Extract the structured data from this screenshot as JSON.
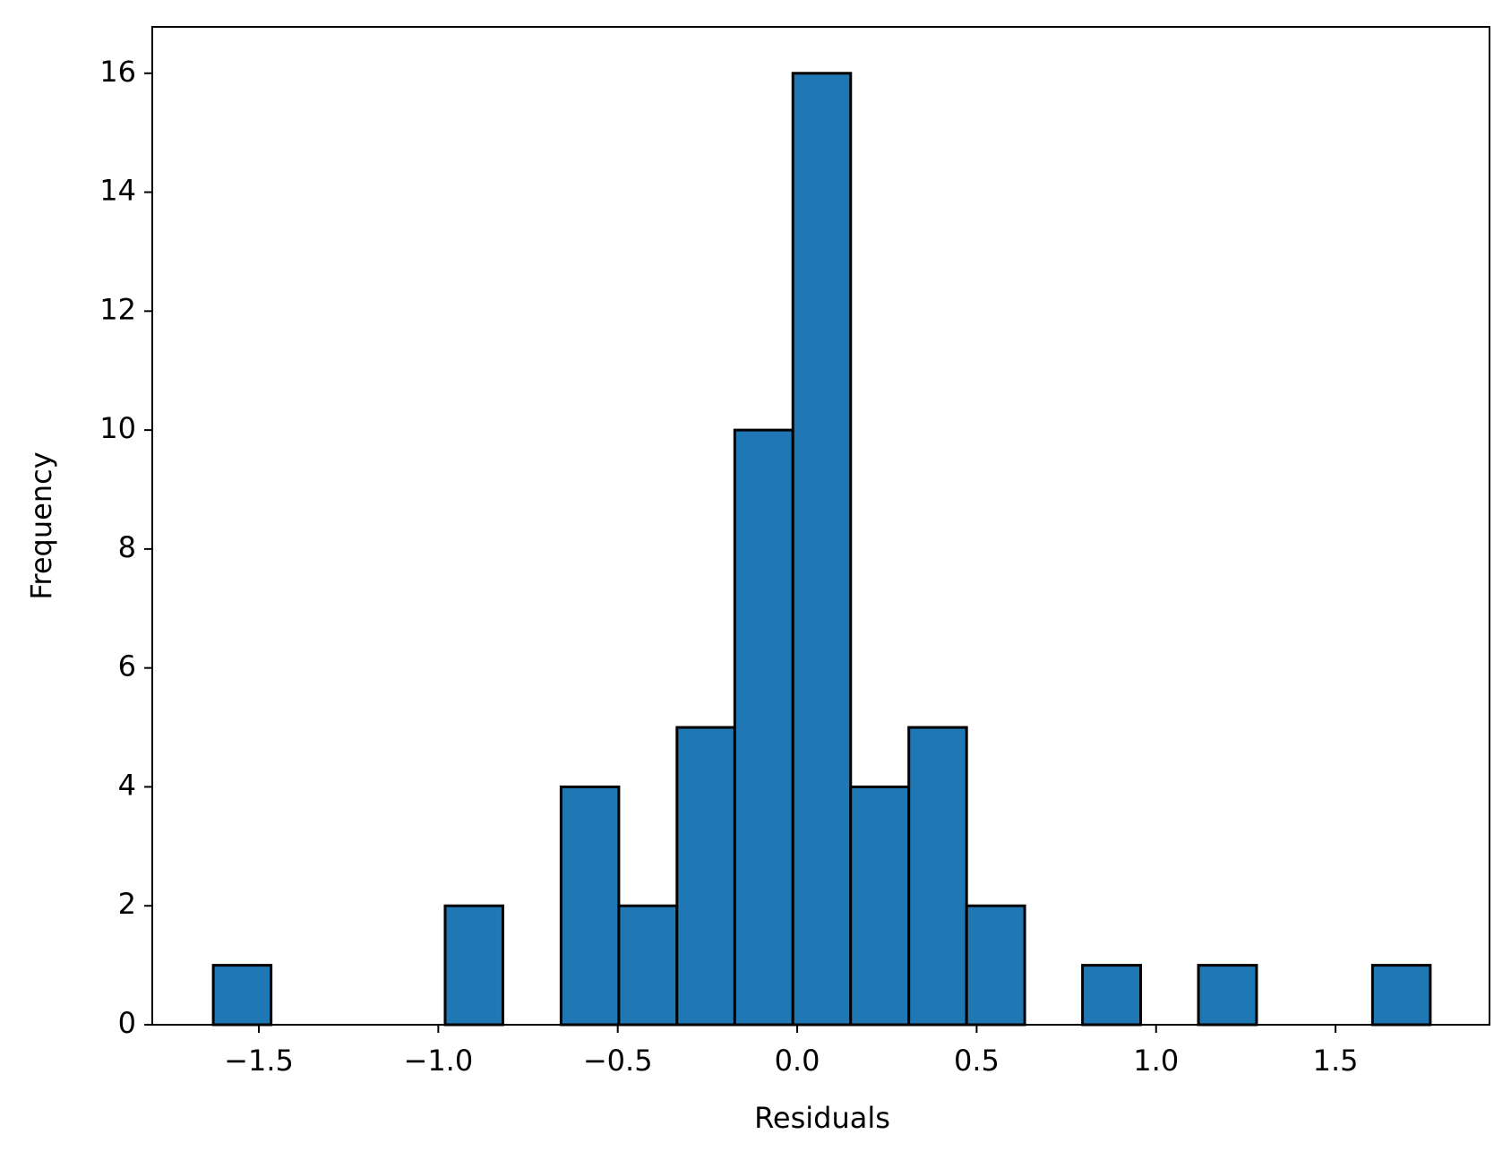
{
  "chart_data": {
    "type": "histogram",
    "xlabel": "Residuals",
    "ylabel": "Frequency",
    "bins": [
      -1.627,
      -1.466,
      -1.304,
      -1.143,
      -0.981,
      -0.82,
      -0.658,
      -0.497,
      -0.335,
      -0.174,
      -0.012,
      0.149,
      0.311,
      0.472,
      0.634,
      0.795,
      0.957,
      1.118,
      1.28,
      1.441,
      1.603,
      1.764
    ],
    "counts": [
      1,
      0,
      0,
      0,
      2,
      0,
      4,
      2,
      5,
      10,
      16,
      4,
      5,
      2,
      0,
      1,
      0,
      1,
      0,
      0,
      1
    ],
    "color": "#1f77b4",
    "edgecolor": "#000000",
    "xlim": [
      -1.797,
      1.929
    ],
    "ylim": [
      0,
      16.78
    ],
    "xticks": [
      {
        "value": -1.5,
        "label": "−1.5"
      },
      {
        "value": -1.0,
        "label": "−1.0"
      },
      {
        "value": -0.5,
        "label": "−0.5"
      },
      {
        "value": 0,
        "label": "0.0"
      },
      0.5,
      {
        "value": 1.0,
        "label": "1.0"
      },
      1.5
    ],
    "yticks": [
      0,
      2,
      4,
      6,
      8,
      10,
      12,
      14,
      16
    ]
  }
}
